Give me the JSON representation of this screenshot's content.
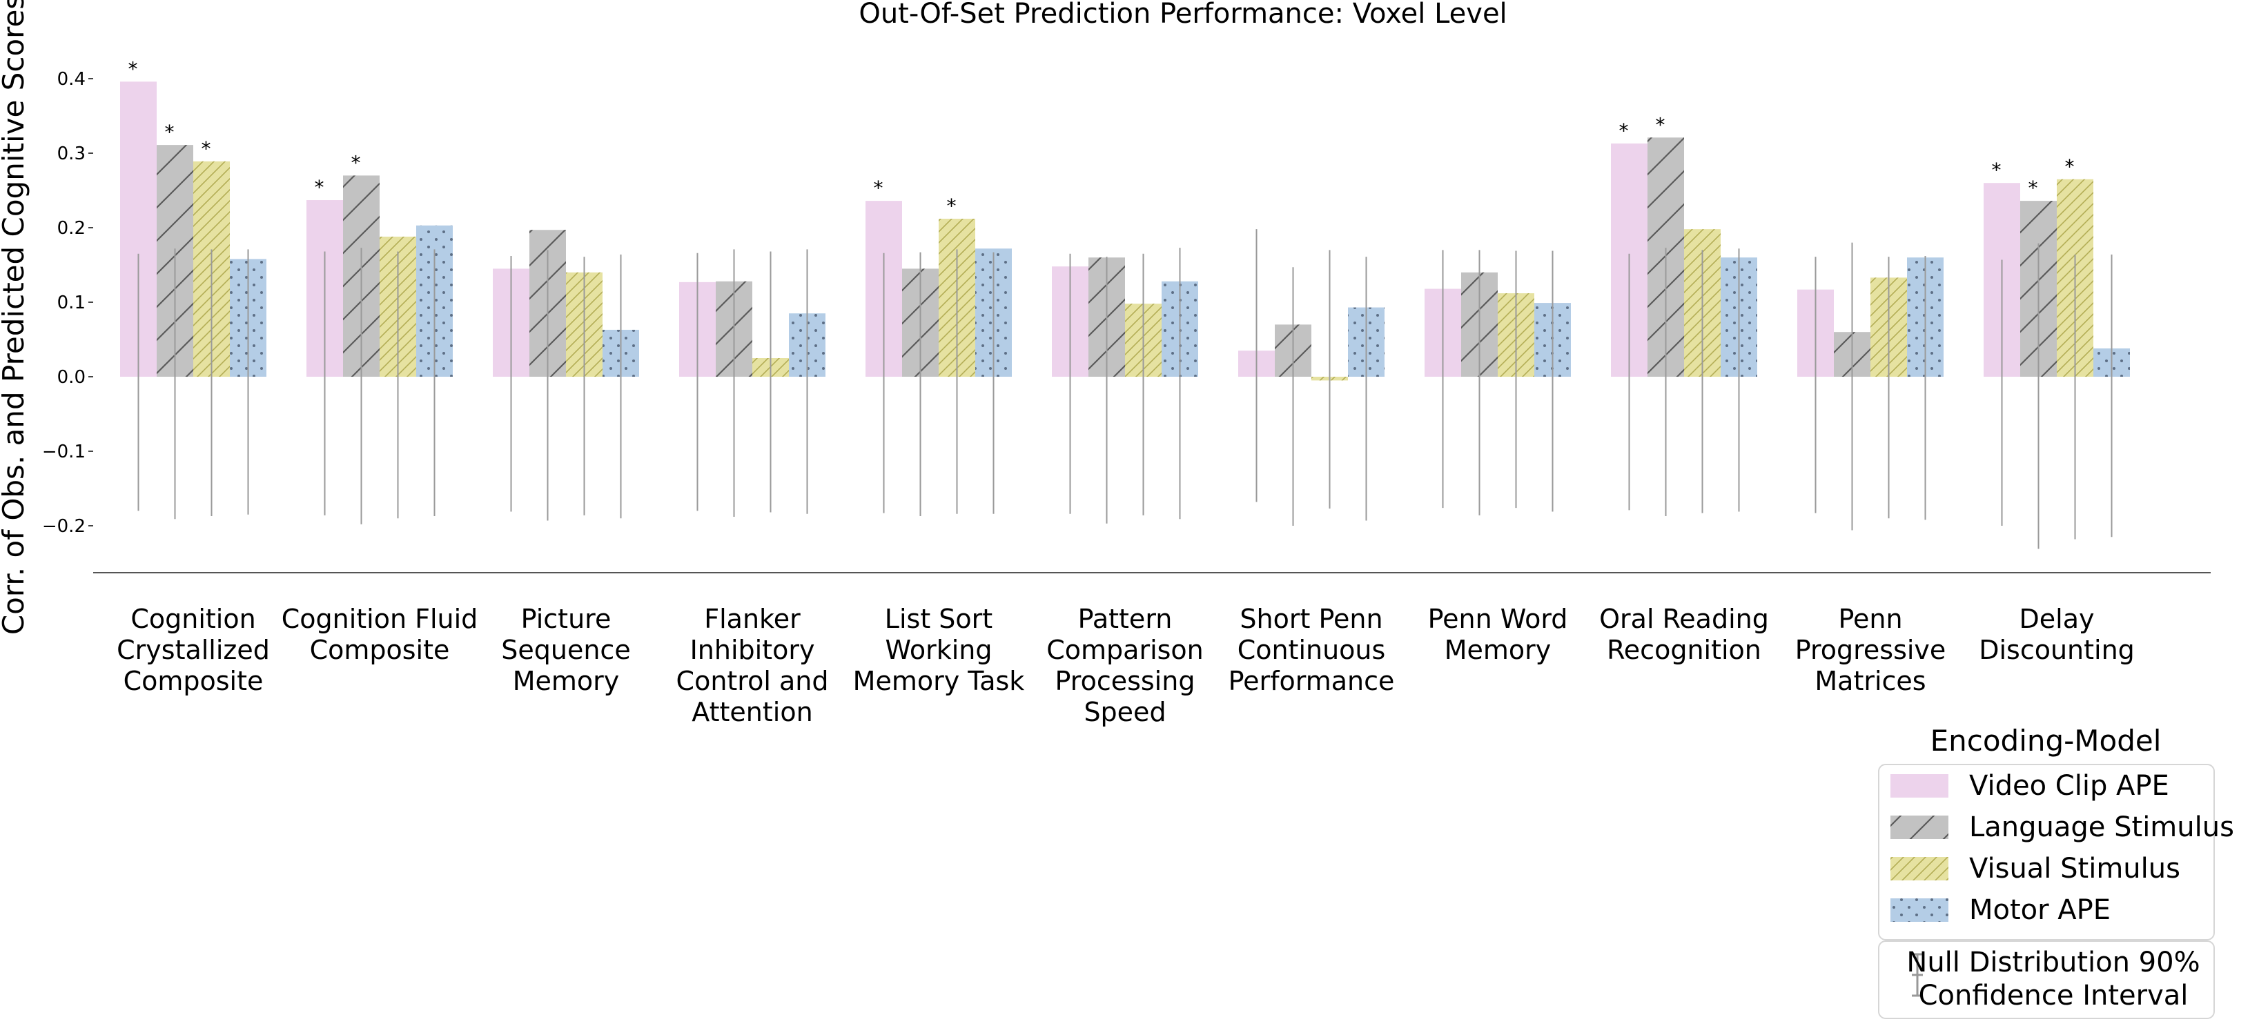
{
  "chart_data": {
    "type": "bar",
    "title": "Out-Of-Set Prediction Performance: Voxel Level",
    "xlabel": "",
    "ylabel": "Corr. of Obs. and Predicted Cognitive Scores",
    "ylim": [
      -0.265,
      0.44
    ],
    "yticks": [
      -0.2,
      -0.1,
      0.0,
      0.1,
      0.2,
      0.3,
      0.4
    ],
    "ytick_labels": [
      "−0.2",
      "−0.1",
      "0.0",
      "0.1",
      "0.2",
      "0.3",
      "0.4"
    ],
    "categories": [
      [
        "Cognition",
        "Crystallized",
        "Composite"
      ],
      [
        "Cognition Fluid",
        "Composite"
      ],
      [
        "Picture",
        "Sequence",
        "Memory"
      ],
      [
        "Flanker",
        "Inhibitory",
        "Control and",
        "Attention"
      ],
      [
        "List Sort",
        "Working",
        "Memory Task"
      ],
      [
        "Pattern",
        "Comparison",
        "Processing",
        "Speed"
      ],
      [
        "Short Penn",
        "Continuous",
        "Performance"
      ],
      [
        "Penn Word",
        "Memory"
      ],
      [
        "Oral Reading",
        "Recognition"
      ],
      [
        "Penn",
        "Progressive",
        "Matrices"
      ],
      [
        "Delay",
        "Discounting"
      ]
    ],
    "series": [
      {
        "name": "Video Clip APE",
        "color": "#edd3ec",
        "hatch": "none",
        "values": [
          0.396,
          0.237,
          0.145,
          0.127,
          0.236,
          0.148,
          0.035,
          0.118,
          0.313,
          0.117,
          0.26
        ],
        "significant": [
          true,
          true,
          false,
          false,
          true,
          false,
          false,
          false,
          true,
          false,
          true
        ],
        "ci_low": [
          -0.18,
          -0.186,
          -0.181,
          -0.18,
          -0.183,
          -0.184,
          -0.168,
          -0.176,
          -0.179,
          -0.183,
          -0.2
        ],
        "ci_high": [
          0.165,
          0.168,
          0.162,
          0.166,
          0.166,
          0.165,
          0.198,
          0.17,
          0.165,
          0.161,
          0.157
        ]
      },
      {
        "name": "Language Stimulus",
        "color": "#c2c2c2",
        "hatch": "slash",
        "values": [
          0.311,
          0.27,
          0.197,
          0.128,
          0.145,
          0.16,
          0.07,
          0.14,
          0.321,
          0.06,
          0.236
        ],
        "significant": [
          true,
          true,
          false,
          false,
          false,
          false,
          false,
          false,
          true,
          false,
          true
        ],
        "ci_low": [
          -0.191,
          -0.198,
          -0.193,
          -0.188,
          -0.187,
          -0.197,
          -0.2,
          -0.186,
          -0.187,
          -0.206,
          -0.231
        ],
        "ci_high": [
          0.172,
          0.173,
          0.17,
          0.171,
          0.167,
          0.161,
          0.147,
          0.17,
          0.173,
          0.18,
          0.179
        ]
      },
      {
        "name": "Visual Stimulus",
        "color": "#e6e2a1",
        "hatch": "dense-slash",
        "values": [
          0.289,
          0.188,
          0.14,
          0.025,
          0.212,
          0.098,
          -0.005,
          0.112,
          0.198,
          0.133,
          0.265
        ],
        "significant": [
          true,
          false,
          false,
          false,
          true,
          false,
          false,
          false,
          false,
          false,
          true
        ],
        "ci_low": [
          -0.187,
          -0.19,
          -0.186,
          -0.182,
          -0.184,
          -0.186,
          -0.177,
          -0.176,
          -0.183,
          -0.19,
          -0.218
        ],
        "ci_high": [
          0.171,
          0.168,
          0.161,
          0.168,
          0.171,
          0.165,
          0.17,
          0.169,
          0.17,
          0.161,
          0.164
        ]
      },
      {
        "name": "Motor APE",
        "color": "#b4cde6",
        "hatch": "dots",
        "values": [
          0.158,
          0.203,
          0.063,
          0.085,
          0.172,
          0.128,
          0.093,
          0.099,
          0.16,
          0.16,
          0.038
        ],
        "significant": [
          false,
          false,
          false,
          false,
          false,
          false,
          false,
          false,
          false,
          false,
          false
        ],
        "ci_low": [
          -0.185,
          -0.187,
          -0.19,
          -0.184,
          -0.184,
          -0.191,
          -0.193,
          -0.181,
          -0.181,
          -0.192,
          -0.215
        ],
        "ci_high": [
          0.171,
          0.171,
          0.164,
          0.171,
          0.167,
          0.173,
          0.161,
          0.169,
          0.172,
          0.162,
          0.164
        ]
      }
    ],
    "significance_marker": "*",
    "legend": {
      "title": "Encoding-Model",
      "placement": "bottom-right",
      "ci_label": [
        "Null Distribution 90%",
        "Confidence Interval"
      ]
    },
    "grid": false
  }
}
